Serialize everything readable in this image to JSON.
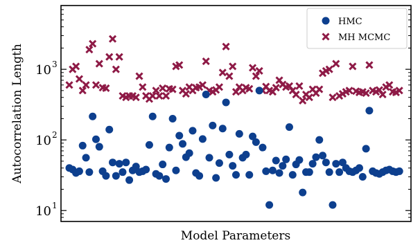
{
  "chart_data": {
    "type": "scatter",
    "title": "",
    "xlabel": "Model Parameters",
    "ylabel": "Autocorrelation Length",
    "yscale": "log",
    "ylim": [
      7,
      8000
    ],
    "yticks": [
      10,
      100,
      1000
    ],
    "ytick_labels": [
      "10",
      "10",
      "10"
    ],
    "ytick_exponents": [
      "1",
      "2",
      "3"
    ],
    "xlim": [
      0,
      100
    ],
    "grid": false,
    "legend_position": "top-right",
    "series": [
      {
        "name": "HMC",
        "marker": "circle",
        "color": "#0d3f8e",
        "x": [
          0,
          1,
          2,
          3,
          4,
          5,
          6,
          7,
          8,
          9,
          10,
          11,
          12,
          13,
          14,
          15,
          16,
          17,
          18,
          19,
          20,
          21,
          22,
          23,
          24,
          25,
          26,
          27,
          28,
          29,
          30,
          31,
          32,
          33,
          34,
          35,
          36,
          37,
          38,
          39,
          40,
          41,
          42,
          43,
          44,
          45,
          46,
          47,
          48,
          49,
          50,
          51,
          52,
          53,
          54,
          55,
          56,
          57,
          58,
          59,
          60,
          61,
          62,
          63,
          64,
          65,
          66,
          67,
          68,
          69,
          70,
          71,
          72,
          73,
          74,
          75,
          76,
          77,
          78,
          79,
          80,
          81,
          82,
          83,
          84,
          85,
          86,
          87,
          88,
          89,
          90,
          91,
          92,
          93,
          94,
          95,
          96,
          97,
          98,
          99
        ],
        "y": [
          40,
          38,
          34,
          36,
          83,
          56,
          35,
          215,
          102,
          80,
          36,
          31,
          140,
          48,
          31,
          46,
          35,
          48,
          27,
          37,
          42,
          35,
          36,
          38,
          85,
          215,
          33,
          31,
          45,
          28,
          78,
          200,
          37,
          115,
          88,
          57,
          65,
          135,
          34,
          31,
          103,
          440,
          56,
          160,
          29,
          47,
          145,
          340,
          62,
          43,
          32,
          122,
          56,
          62,
          32,
          112,
          93,
          500,
          78,
          36,
          12,
          37,
          51,
          34,
          43,
          53,
          152,
          32,
          45,
          52,
          18,
          35,
          35,
          46,
          57,
          100,
          60,
          48,
          35,
          12,
          46,
          35,
          48,
          40,
          36,
          35,
          37,
          40,
          30,
          75,
          260,
          36,
          34,
          33,
          35,
          37,
          38,
          36,
          35,
          36
        ]
      },
      {
        "name": "MH MCMC",
        "marker": "x",
        "color": "#8e1a46",
        "x": [
          0,
          1,
          2,
          3,
          4,
          5,
          6,
          7,
          8,
          9,
          10,
          11,
          12,
          13,
          14,
          15,
          16,
          17,
          18,
          19,
          20,
          21,
          22,
          23,
          24,
          25,
          26,
          27,
          28,
          29,
          30,
          31,
          32,
          33,
          34,
          35,
          36,
          37,
          38,
          39,
          40,
          41,
          42,
          43,
          44,
          45,
          46,
          47,
          48,
          49,
          50,
          51,
          52,
          53,
          54,
          55,
          56,
          57,
          58,
          59,
          60,
          61,
          62,
          63,
          64,
          65,
          66,
          67,
          68,
          69,
          70,
          71,
          72,
          73,
          74,
          75,
          76,
          77,
          78,
          79,
          80,
          81,
          82,
          83,
          84,
          85,
          86,
          87,
          88,
          89,
          90,
          91,
          92,
          93,
          94,
          95,
          96,
          97,
          98,
          99
        ],
        "y": [
          600,
          1000,
          1100,
          730,
          500,
          600,
          1900,
          2300,
          600,
          1200,
          550,
          540,
          1500,
          2700,
          1000,
          1500,
          420,
          400,
          420,
          420,
          400,
          800,
          560,
          420,
          380,
          420,
          500,
          420,
          540,
          420,
          530,
          520,
          1100,
          1150,
          500,
          450,
          560,
          500,
          550,
          560,
          600,
          1300,
          500,
          480,
          510,
          560,
          900,
          2100,
          800,
          1100,
          480,
          560,
          500,
          550,
          530,
          1050,
          800,
          950,
          500,
          570,
          500,
          480,
          550,
          700,
          610,
          560,
          580,
          500,
          440,
          580,
          360,
          440,
          400,
          520,
          460,
          520,
          880,
          950,
          1000,
          400,
          1200,
          420,
          450,
          480,
          500,
          1100,
          490,
          470,
          480,
          460,
          1150,
          500,
          480,
          510,
          440,
          560,
          600,
          480,
          470,
          500
        ]
      }
    ]
  }
}
